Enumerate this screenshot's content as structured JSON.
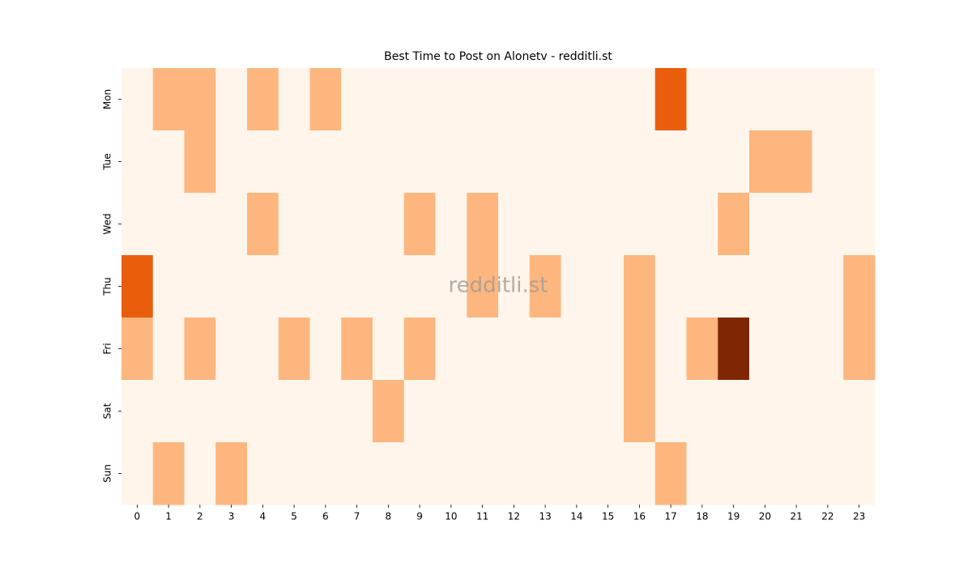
{
  "chart_data": {
    "type": "heatmap",
    "title": "Best Time to Post on Alonetv - redditli.st",
    "watermark": "redditli.st",
    "x": [
      0,
      1,
      2,
      3,
      4,
      5,
      6,
      7,
      8,
      9,
      10,
      11,
      12,
      13,
      14,
      15,
      16,
      17,
      18,
      19,
      20,
      21,
      22,
      23
    ],
    "y": [
      "Mon",
      "Tue",
      "Wed",
      "Thu",
      "Fri",
      "Sat",
      "Sun"
    ],
    "z": [
      [
        0,
        1,
        1,
        0,
        1,
        0,
        1,
        0,
        0,
        0,
        0,
        0,
        0,
        0,
        0,
        0,
        0,
        2,
        0,
        0,
        0,
        0,
        0,
        0
      ],
      [
        0,
        0,
        1,
        0,
        0,
        0,
        0,
        0,
        0,
        0,
        0,
        0,
        0,
        0,
        0,
        0,
        0,
        0,
        0,
        0,
        1,
        1,
        0,
        0
      ],
      [
        0,
        0,
        0,
        0,
        1,
        0,
        0,
        0,
        0,
        1,
        0,
        1,
        0,
        0,
        0,
        0,
        0,
        0,
        0,
        1,
        0,
        0,
        0,
        0
      ],
      [
        2,
        0,
        0,
        0,
        0,
        0,
        0,
        0,
        0,
        0,
        0,
        1,
        0,
        1,
        0,
        0,
        1,
        0,
        0,
        0,
        0,
        0,
        0,
        1
      ],
      [
        1,
        0,
        1,
        0,
        0,
        1,
        0,
        1,
        0,
        1,
        0,
        0,
        0,
        0,
        0,
        0,
        1,
        0,
        1,
        3,
        0,
        0,
        0,
        1
      ],
      [
        0,
        0,
        0,
        0,
        0,
        0,
        0,
        0,
        1,
        0,
        0,
        0,
        0,
        0,
        0,
        0,
        1,
        0,
        0,
        0,
        0,
        0,
        0,
        0
      ],
      [
        0,
        1,
        0,
        1,
        0,
        0,
        0,
        0,
        0,
        0,
        0,
        0,
        0,
        0,
        0,
        0,
        0,
        1,
        0,
        0,
        0,
        0,
        0,
        0
      ]
    ],
    "colors": [
      "#fff5eb",
      "#fdb77e",
      "#e95e0d",
      "#7f2704"
    ]
  }
}
